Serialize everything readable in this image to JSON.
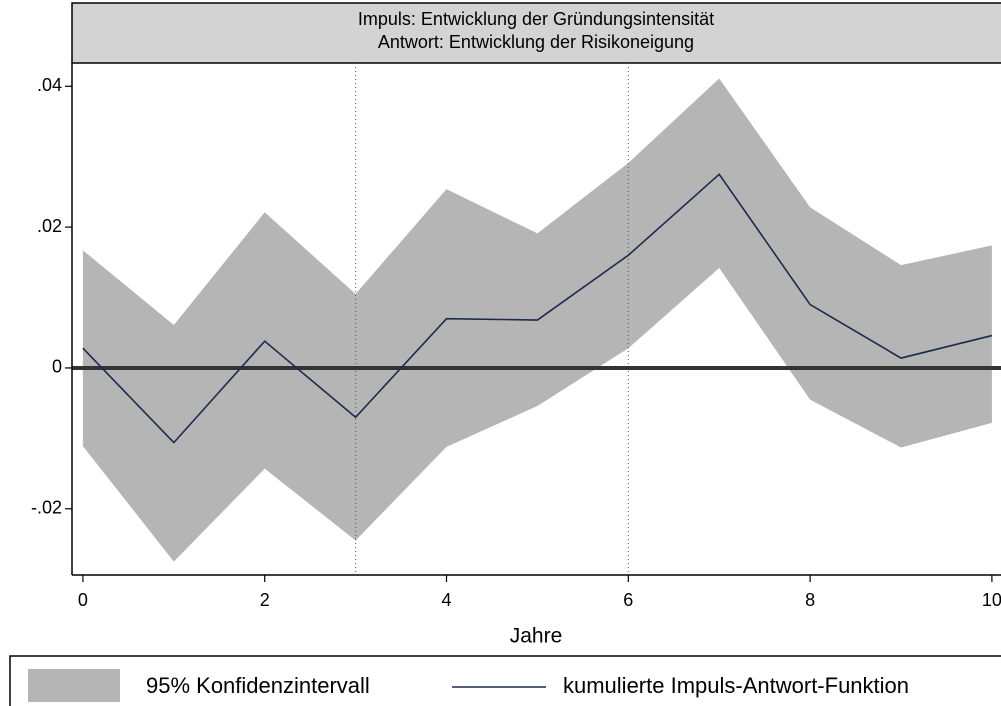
{
  "chart_data": {
    "type": "irf",
    "title": "Impuls: Entwicklung der Gründungsintensität",
    "subtitle": "Antwort: Entwicklung der Risikoneigung",
    "x_label": "Jahre",
    "x": [
      0,
      1,
      2,
      3,
      4,
      5,
      6,
      7,
      8,
      9,
      10
    ],
    "series": [
      {
        "name": "95% Konfidenzintervall",
        "color": "#b5b5b5",
        "upper": [
          0.0167,
          0.0061,
          0.0221,
          0.0105,
          0.0254,
          0.0191,
          0.0291,
          0.0411,
          0.0228,
          0.0146,
          0.0174
        ],
        "lower": [
          -0.0111,
          -0.0275,
          -0.0143,
          -0.0245,
          -0.0112,
          -0.0054,
          0.0028,
          0.0142,
          -0.0045,
          -0.0113,
          -0.0078
        ]
      },
      {
        "name": "kumulierte Impuls-Antwort-Funktion",
        "color": "#1c2a4e",
        "values": [
          0.0028,
          -0.0106,
          0.0038,
          -0.007,
          0.007,
          0.0068,
          0.016,
          0.0275,
          0.009,
          0.0014,
          0.0046
        ]
      }
    ],
    "xlim": [
      -0.12,
      10.1
    ],
    "ylim": [
      -0.0294,
      0.0433
    ],
    "xticks": [
      0,
      2,
      4,
      6,
      8,
      10
    ],
    "yticks": [
      {
        "value": -0.02,
        "label": "-.02"
      },
      0,
      {
        "value": 0.02,
        "label": ".02"
      },
      {
        "value": 0.04,
        "label": ".04"
      }
    ],
    "xlines": [
      3,
      6
    ],
    "yline": 0
  }
}
